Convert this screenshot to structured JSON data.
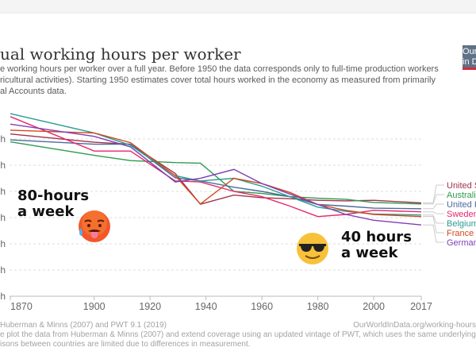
{
  "header": {
    "title": "ual working hours per worker",
    "subtitle_lines": [
      "e working hours per worker over a full year. Before 1950 the data corresponds only to full-time production workers",
      "ricultural activities). Starting 1950 estimates cover total hours worked in the economy as measured from primarily",
      "al Accounts data."
    ],
    "logo_lines": [
      "Our World",
      "in Data"
    ]
  },
  "footer": {
    "source": "Huberman & Minns (2007) and PWT 9.1 (2019)",
    "url": "OurWorldInData.org/working-hours",
    "note_lines": [
      "e plot the data from Huberman & Minns (2007) and extend coverage using an updated vintage of PWT, which uses the same underlying sourc",
      "isons between countries are limited due to differences in measurement."
    ]
  },
  "annotations": {
    "left": [
      "80-hours",
      "a week"
    ],
    "right": [
      "40 hours",
      "a week"
    ],
    "left_emoji": "hot-face-icon",
    "right_emoji": "sunglasses-face-icon"
  },
  "chart_data": {
    "type": "line",
    "title": "Annual working hours per worker",
    "xlim": [
      1870,
      2017
    ],
    "ylim": [
      0,
      3500
    ],
    "x_ticks": [
      1870,
      1900,
      1920,
      1940,
      1960,
      1980,
      2000,
      2017
    ],
    "y_ticks": [
      0,
      500,
      1000,
      1500,
      2000,
      2500,
      3000
    ],
    "y_tick_unit": "h",
    "grid": "horizontal dashed",
    "legend": "right (line-end labels)",
    "series": [
      {
        "name": "United States",
        "color": "#a2334c",
        "x": [
          1870,
          1900,
          1913,
          1929,
          1938,
          1950,
          1960,
          1970,
          1980,
          1990,
          2000,
          2017
        ],
        "values": [
          3096,
          2938,
          2900,
          2342,
          1756,
          1930,
          1880,
          1860,
          1830,
          1820,
          1830,
          1780
        ]
      },
      {
        "name": "Australia",
        "color": "#2e9b4d",
        "x": [
          1870,
          1900,
          1913,
          1929,
          1938,
          1950,
          1960,
          1970,
          1980,
          1990,
          2000,
          2017
        ],
        "values": [
          2945,
          2688,
          2588,
          2550,
          2540,
          2000,
          1960,
          1900,
          1870,
          1850,
          1790,
          1760
        ]
      },
      {
        "name": "United Kingdom",
        "color": "#4c6a9c",
        "x": [
          1870,
          1900,
          1913,
          1929,
          1938,
          1950,
          1960,
          1970,
          1980,
          1990,
          2000,
          2017
        ],
        "values": [
          2984,
          2900,
          2900,
          2260,
          2200,
          2080,
          2000,
          1900,
          1750,
          1720,
          1680,
          1670
        ]
      },
      {
        "name": "Sweden",
        "color": "#e5276e",
        "x": [
          1870,
          1900,
          1913,
          1929,
          1938,
          1950,
          1960,
          1970,
          1980,
          1990,
          2000,
          2017
        ],
        "values": [
          3427,
          2770,
          2770,
          2200,
          2180,
          2000,
          1900,
          1720,
          1520,
          1560,
          1640,
          1610
        ]
      },
      {
        "name": "Belgium",
        "color": "#2a9d8f",
        "x": [
          1870,
          1900,
          1913,
          1929,
          1938,
          1950,
          1960,
          1970,
          1980,
          1990,
          2000,
          2017
        ],
        "values": [
          3483,
          3115,
          2880,
          2300,
          2200,
          2250,
          2100,
          1900,
          1700,
          1620,
          1570,
          1550
        ]
      },
      {
        "name": "France",
        "color": "#d1491e",
        "x": [
          1870,
          1900,
          1913,
          1929,
          1938,
          1950,
          1960,
          1970,
          1980,
          1990,
          2000,
          2017
        ],
        "values": [
          3168,
          3115,
          2930,
          2297,
          1760,
          2250,
          2150,
          1980,
          1750,
          1640,
          1560,
          1520
        ]
      },
      {
        "name": "Germany",
        "color": "#7e3fb6",
        "x": [
          1870,
          1900,
          1913,
          1929,
          1938,
          1950,
          1960,
          1970,
          1980,
          1990,
          2000,
          2017
        ],
        "values": [
          3284,
          3050,
          2850,
          2180,
          2250,
          2420,
          2150,
          1950,
          1750,
          1560,
          1450,
          1360
        ]
      }
    ]
  }
}
